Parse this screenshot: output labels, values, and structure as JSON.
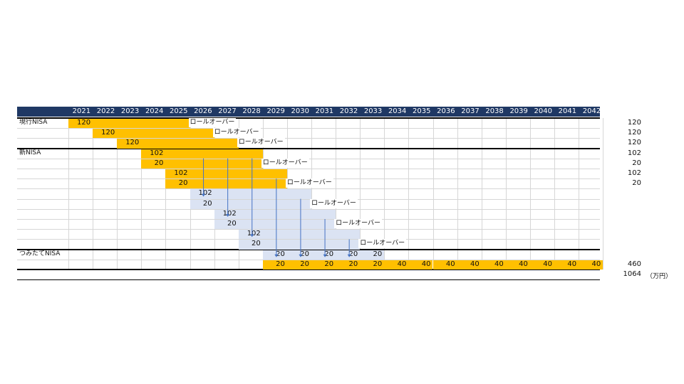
{
  "years": [
    "2021",
    "2022",
    "2023",
    "2024",
    "2025",
    "2026",
    "2027",
    "2028",
    "2029",
    "2030",
    "2031",
    "2032",
    "2033",
    "2034",
    "2035",
    "2036",
    "2037",
    "2038",
    "2039",
    "2040",
    "2041",
    "2042"
  ],
  "section_labels": {
    "genko": "現行NISA",
    "shin": "新NISA",
    "tsumitate": "つみたてNISA"
  },
  "rollover_label": "ロールオーバー",
  "rows": [
    {
      "cells": [
        {
          "s": 0,
          "e": 4,
          "v": "120",
          "c": "o"
        }
      ],
      "roll": {
        "at": 5
      }
    },
    {
      "cells": [
        {
          "s": 1,
          "e": 5,
          "v": "120",
          "c": "o"
        }
      ],
      "roll": {
        "at": 6
      }
    },
    {
      "cells": [
        {
          "s": 2,
          "e": 6,
          "v": "120",
          "c": "o"
        }
      ],
      "roll": {
        "at": 7
      }
    },
    {
      "cells": [
        {
          "s": 3,
          "e": 7,
          "v": "102",
          "c": "o"
        }
      ]
    },
    {
      "cells": [
        {
          "s": 3,
          "e": 7,
          "v": "20",
          "c": "o"
        }
      ],
      "roll": {
        "at": 8
      }
    },
    {
      "cells": [
        {
          "s": 4,
          "e": 8,
          "v": "102",
          "c": "o"
        }
      ]
    },
    {
      "cells": [
        {
          "s": 4,
          "e": 8,
          "v": "20",
          "c": "o"
        }
      ],
      "roll": {
        "at": 9
      }
    },
    {
      "cells": [
        {
          "s": 5,
          "e": 9,
          "v": "102",
          "c": "b"
        }
      ]
    },
    {
      "cells": [
        {
          "s": 5,
          "e": 9,
          "v": "20",
          "c": "b"
        }
      ],
      "roll": {
        "at": 10
      }
    },
    {
      "cells": [
        {
          "s": 6,
          "e": 10,
          "v": "102",
          "c": "b"
        }
      ]
    },
    {
      "cells": [
        {
          "s": 6,
          "e": 10,
          "v": "20",
          "c": "b"
        }
      ],
      "roll": {
        "at": 11
      }
    },
    {
      "cells": [
        {
          "s": 7,
          "e": 11,
          "v": "102",
          "c": "b"
        }
      ]
    },
    {
      "cells": [
        {
          "s": 7,
          "e": 11,
          "v": "20",
          "c": "b"
        }
      ],
      "roll": {
        "at": 12
      }
    },
    {
      "cells": [
        {
          "s": 8,
          "e": 8,
          "v": "20",
          "c": "b"
        },
        {
          "s": 9,
          "e": 9,
          "v": "20",
          "c": "b"
        },
        {
          "s": 10,
          "e": 10,
          "v": "20",
          "c": "b"
        },
        {
          "s": 11,
          "e": 11,
          "v": "20",
          "c": "b"
        },
        {
          "s": 12,
          "e": 12,
          "v": "20",
          "c": "b"
        }
      ]
    },
    {
      "cells": [
        {
          "s": 8,
          "e": 8,
          "v": "20",
          "c": "o"
        },
        {
          "s": 9,
          "e": 9,
          "v": "20",
          "c": "o"
        },
        {
          "s": 10,
          "e": 10,
          "v": "20",
          "c": "o"
        },
        {
          "s": 11,
          "e": 11,
          "v": "20",
          "c": "o"
        },
        {
          "s": 12,
          "e": 12,
          "v": "20",
          "c": "o"
        },
        {
          "s": 13,
          "e": 13,
          "v": "40",
          "c": "o"
        },
        {
          "s": 14,
          "e": 14,
          "v": "40",
          "c": "o"
        },
        {
          "s": 15,
          "e": 15,
          "v": "40",
          "c": "o"
        },
        {
          "s": 16,
          "e": 16,
          "v": "40",
          "c": "o"
        },
        {
          "s": 17,
          "e": 17,
          "v": "40",
          "c": "o"
        },
        {
          "s": 18,
          "e": 18,
          "v": "40",
          "c": "o"
        },
        {
          "s": 19,
          "e": 19,
          "v": "40",
          "c": "o"
        },
        {
          "s": 20,
          "e": 20,
          "v": "40",
          "c": "o"
        },
        {
          "s": 21,
          "e": 21,
          "v": "40",
          "c": "o"
        }
      ]
    }
  ],
  "row_totals": [
    "120",
    "120",
    "120",
    "102",
    "20",
    "102",
    "20",
    "",
    "",
    "",
    "",
    "",
    "",
    "",
    "460"
  ],
  "grand_total": "1064",
  "unit": "（万円）",
  "colors": {
    "header": "#1f3864",
    "orange": "#ffc000",
    "blue": "#dbe3f3",
    "arrow": "#4472c4"
  }
}
